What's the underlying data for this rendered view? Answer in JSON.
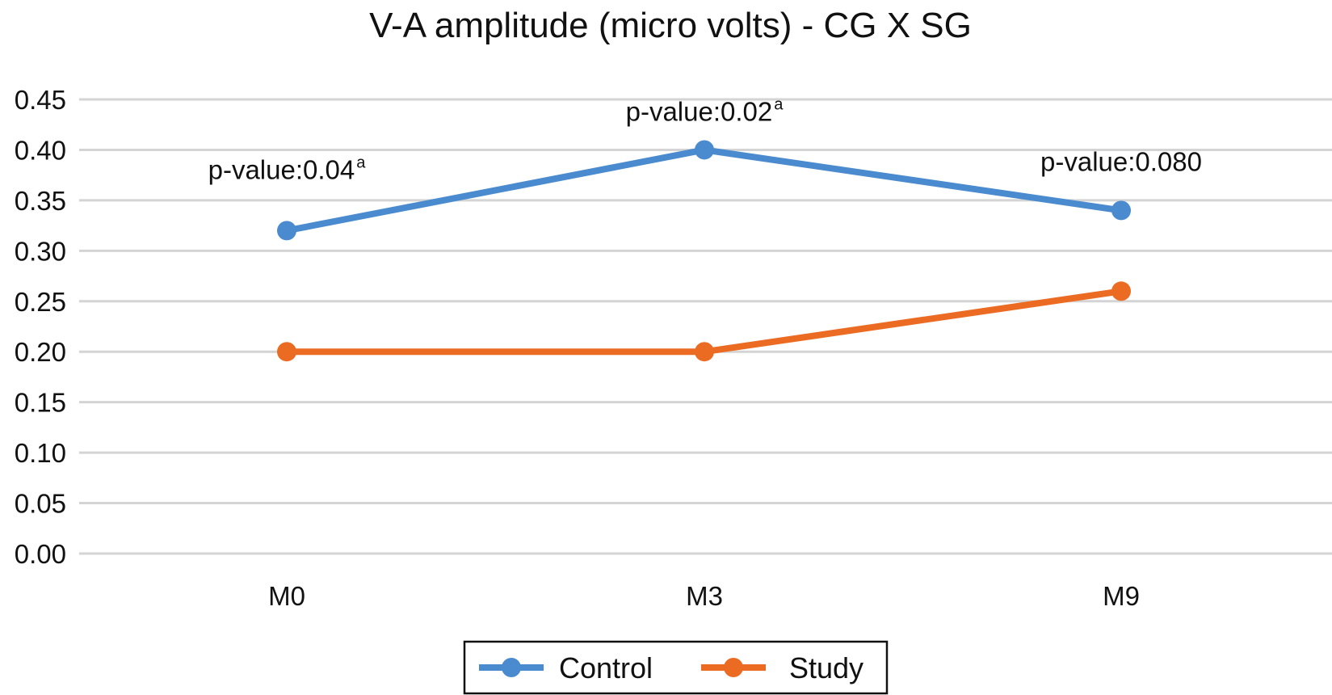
{
  "chart_data": {
    "type": "line",
    "title": "V-A amplitude (micro volts) - CG X SG",
    "xlabel": "",
    "ylabel": "",
    "categories": [
      "M0",
      "M3",
      "M9"
    ],
    "ylim": [
      0,
      0.45
    ],
    "yticks": [
      "0.00",
      "0.05",
      "0.10",
      "0.15",
      "0.20",
      "0.25",
      "0.30",
      "0.35",
      "0.40",
      "0.45"
    ],
    "grid": true,
    "legend_position": "bottom",
    "series": [
      {
        "name": "Control",
        "color": "#4a8bd0",
        "values": [
          0.32,
          0.4,
          0.34
        ]
      },
      {
        "name": "Study",
        "color": "#ec6b23",
        "values": [
          0.2,
          0.2,
          0.26
        ]
      }
    ],
    "annotations": [
      {
        "category": "M0",
        "text": "p-value:0.04",
        "superscript": "a"
      },
      {
        "category": "M3",
        "text": "p-value:0.02",
        "superscript": "a"
      },
      {
        "category": "M9",
        "text": "p-value:0.080",
        "superscript": ""
      }
    ]
  }
}
